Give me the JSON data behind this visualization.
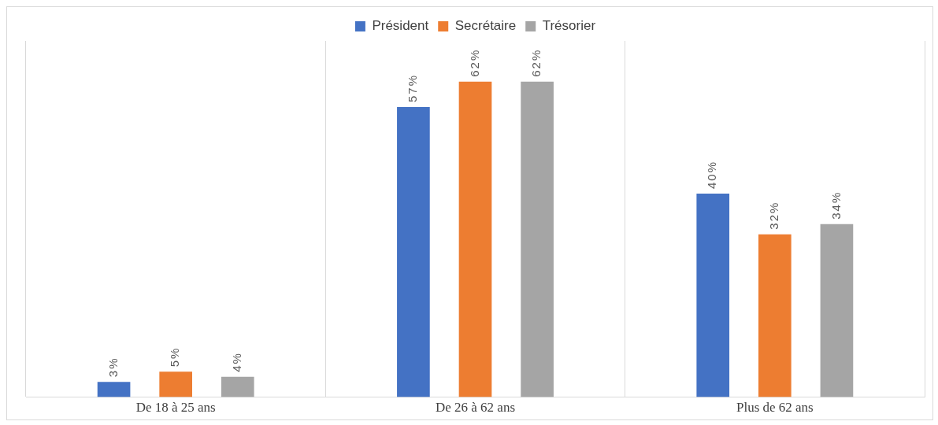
{
  "chart_data": {
    "type": "bar",
    "categories": [
      "De 18 à 25 ans",
      "De 26 à 62 ans",
      "Plus de 62 ans"
    ],
    "series": [
      {
        "name": "Président",
        "color": "#4472c4",
        "values": [
          3,
          57,
          40
        ],
        "value_labels": [
          "3%",
          "57%",
          "40%"
        ]
      },
      {
        "name": "Secrétaire",
        "color": "#ed7d31",
        "values": [
          5,
          62,
          32
        ],
        "value_labels": [
          "5%",
          "62%",
          "32%"
        ]
      },
      {
        "name": "Trésorier",
        "color": "#a5a5a5",
        "values": [
          4,
          62,
          34
        ],
        "value_labels": [
          "4%",
          "62%",
          "34%"
        ]
      }
    ],
    "ylim": [
      0,
      70
    ],
    "grid": "x",
    "legend": "top",
    "tick_labels": "x"
  }
}
